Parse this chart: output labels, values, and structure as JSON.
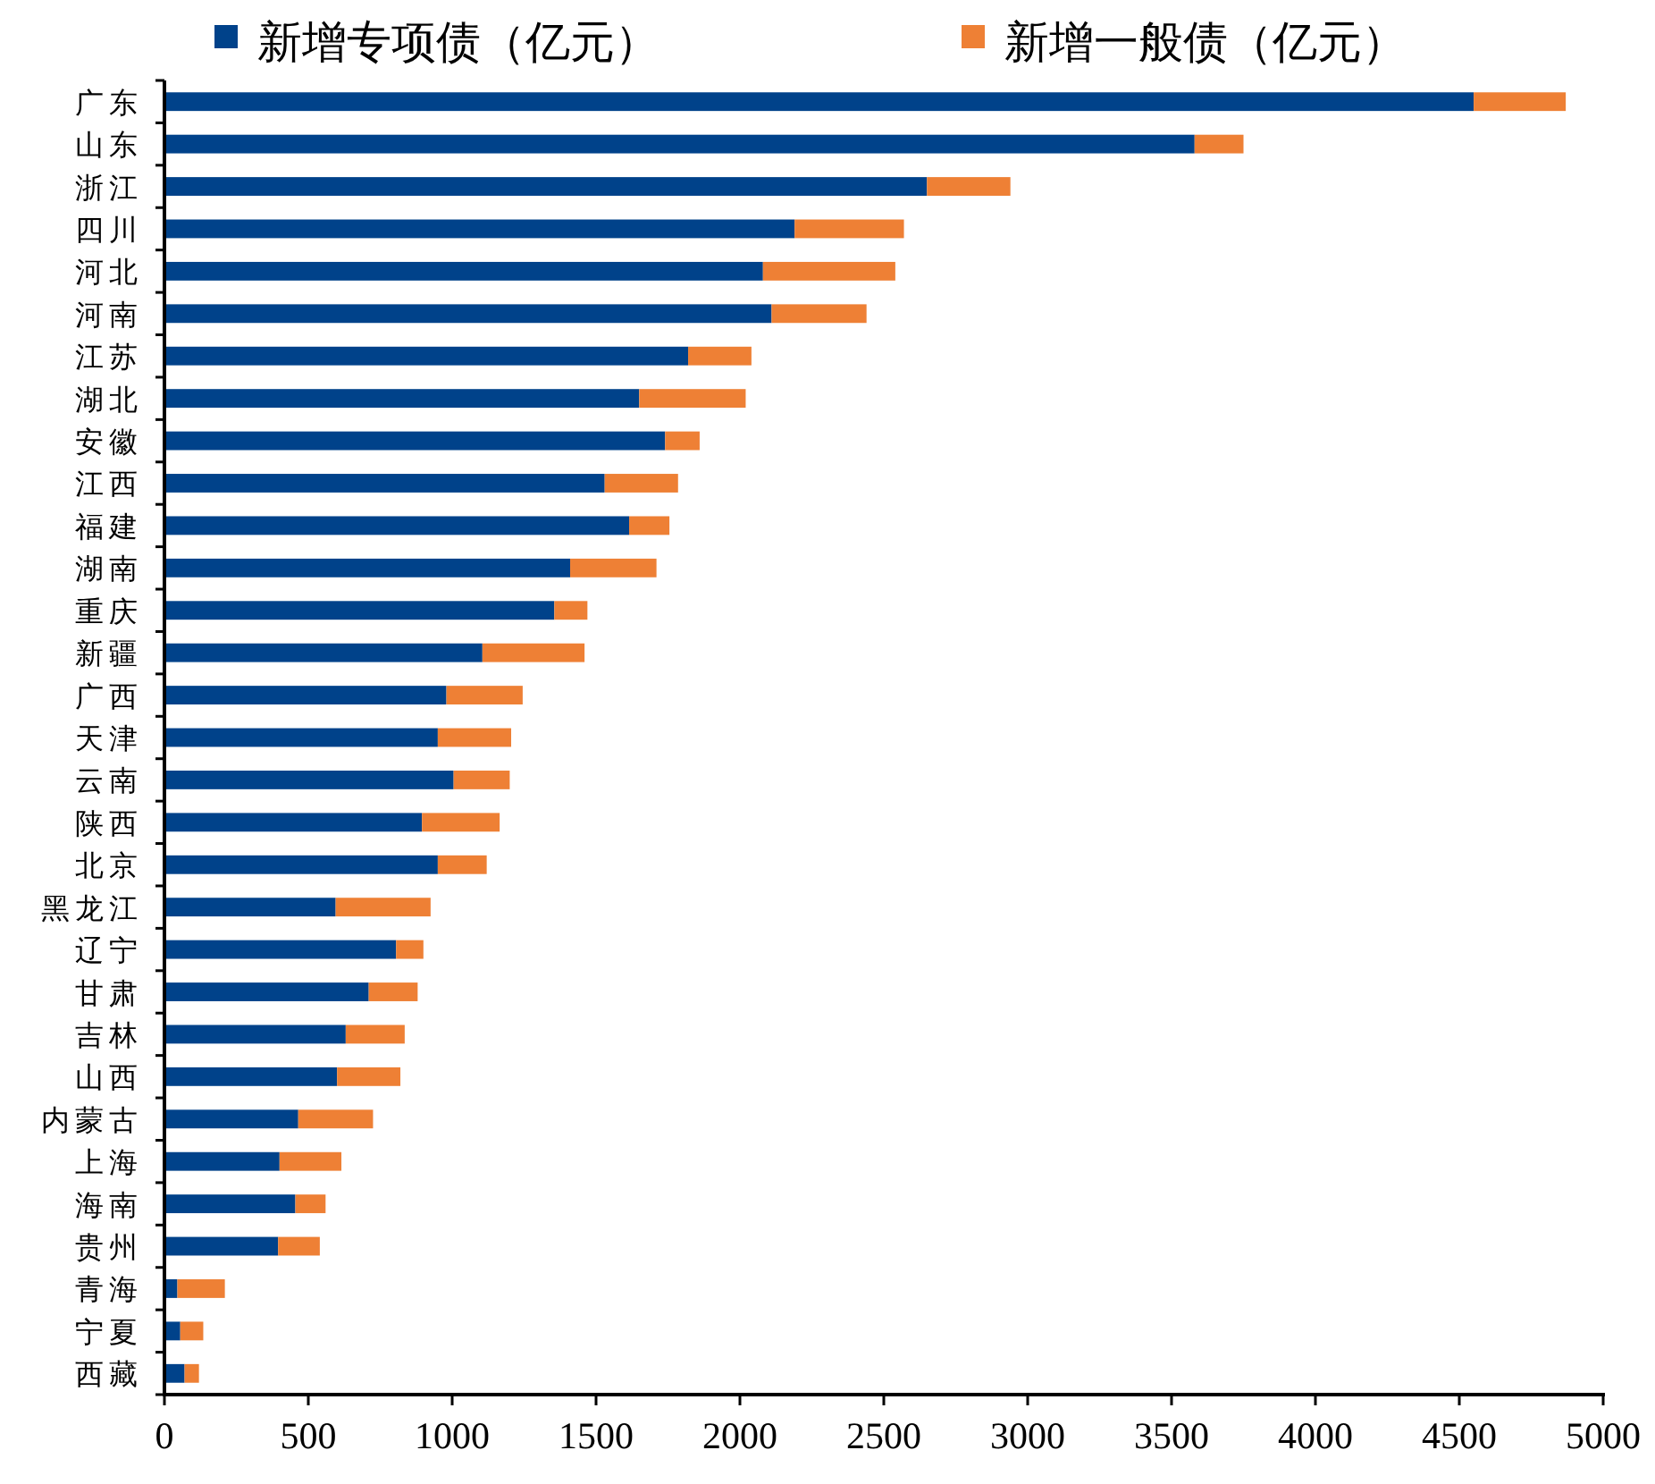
{
  "chart_data": {
    "type": "bar",
    "orientation": "horizontal",
    "stacked": true,
    "legend": "top",
    "grid": false,
    "categories": [
      "广东",
      "山东",
      "浙江",
      "四川",
      "河北",
      "河南",
      "江苏",
      "湖北",
      "安徽",
      "江西",
      "福建",
      "湖南",
      "重庆",
      "新疆",
      "广西",
      "天津",
      "云南",
      "陕西",
      "北京",
      "黑龙江",
      "辽宁",
      "甘肃",
      "吉林",
      "山西",
      "内蒙古",
      "上海",
      "海南",
      "贵州",
      "青海",
      "宁夏",
      "西藏"
    ],
    "series": [
      {
        "name": "新增专项债（亿元）",
        "color": "#00428a",
        "values": [
          4550,
          3580,
          2650,
          2190,
          2080,
          2110,
          1820,
          1650,
          1740,
          1530,
          1615,
          1410,
          1355,
          1105,
          980,
          950,
          1005,
          895,
          950,
          595,
          805,
          710,
          630,
          600,
          465,
          400,
          455,
          395,
          45,
          55,
          70
        ]
      },
      {
        "name": "新增一般债（亿元）",
        "color": "#ee8035",
        "values": [
          320,
          170,
          290,
          380,
          460,
          330,
          220,
          370,
          120,
          255,
          140,
          300,
          115,
          355,
          265,
          255,
          195,
          270,
          170,
          330,
          95,
          170,
          205,
          220,
          260,
          215,
          105,
          145,
          165,
          80,
          50
        ]
      }
    ],
    "xlim": [
      0,
      5000
    ],
    "xticks": [
      0,
      500,
      1000,
      1500,
      2000,
      2500,
      3000,
      3500,
      4000,
      4500,
      5000
    ]
  }
}
